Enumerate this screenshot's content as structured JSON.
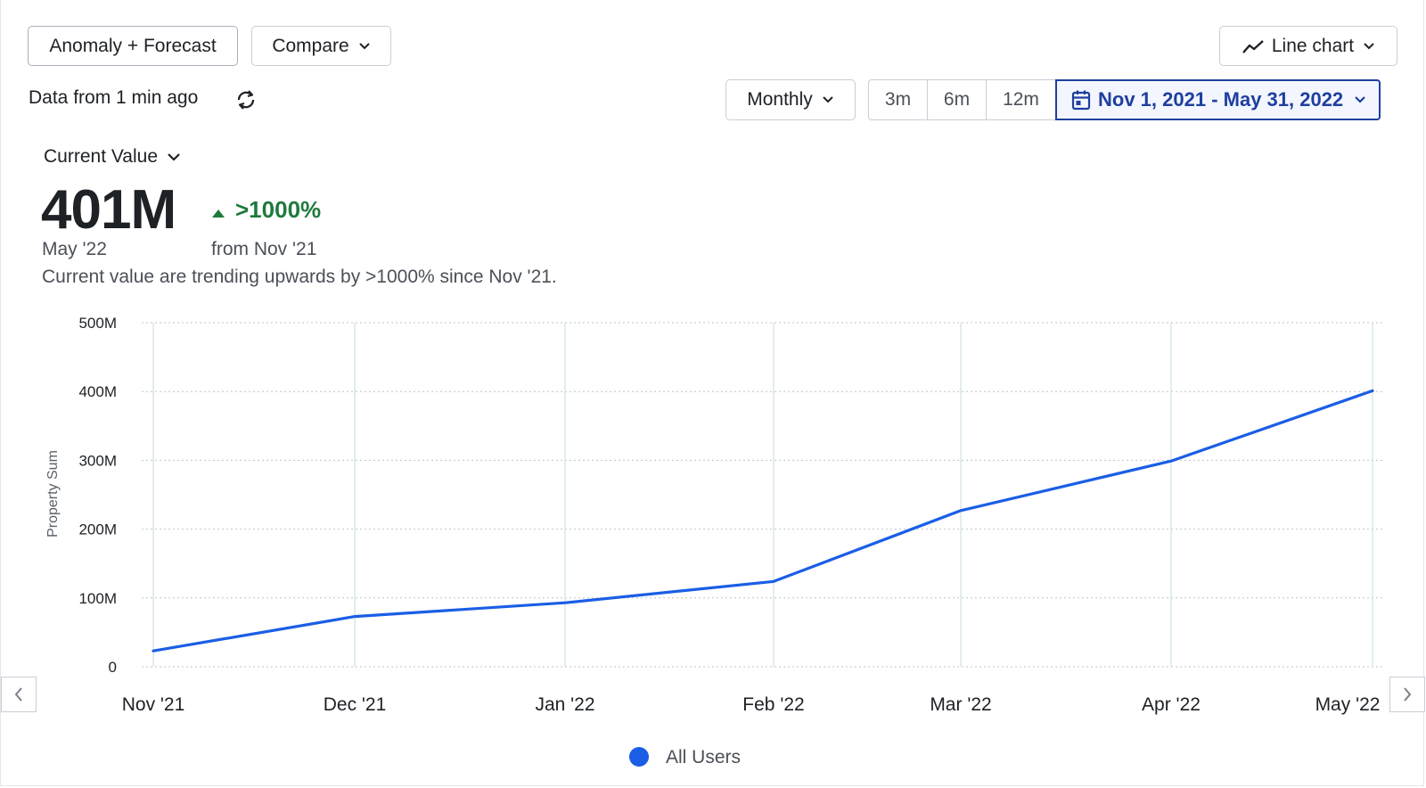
{
  "toolbar": {
    "anomaly_label": "Anomaly + Forecast",
    "compare_label": "Compare",
    "chart_type_label": "Line chart",
    "data_freshness": "Data from 1 min ago",
    "interval_label": "Monthly",
    "ranges": [
      "3m",
      "6m",
      "12m"
    ],
    "date_range": "Nov 1, 2021 - May 31, 2022"
  },
  "summary": {
    "metric_selector": "Current Value",
    "value": "401M",
    "change": ">1000%",
    "value_period": "May '22",
    "change_period": "from Nov '21",
    "description": "Current value are trending upwards by >1000% since Nov '21."
  },
  "colors": {
    "accent": "#1f3f9e",
    "line": "#1a5ee6",
    "positive": "#1f7a3d"
  },
  "chart_data": {
    "type": "line",
    "categories": [
      "Nov '21",
      "Dec '21",
      "Jan '22",
      "Feb '22",
      "Mar '22",
      "Apr '22",
      "May '22"
    ],
    "series": [
      {
        "name": "All Users",
        "values": [
          23,
          73,
          93,
          124,
          227,
          299,
          401
        ]
      }
    ],
    "value_unit": "M",
    "title": "",
    "xlabel": "",
    "ylabel": "Property Sum",
    "ylim": [
      0,
      500
    ],
    "yticks": [
      0,
      100,
      200,
      300,
      400,
      500
    ],
    "ytick_labels": [
      "0",
      "100M",
      "200M",
      "300M",
      "400M",
      "500M"
    ],
    "grid": true,
    "legend": "bottom-center"
  }
}
